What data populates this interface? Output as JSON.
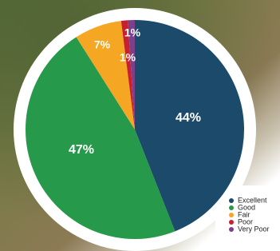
{
  "chart_data": {
    "type": "pie",
    "categories": [
      "Excellent",
      "Good",
      "Fair",
      "Poor",
      "Very Poor"
    ],
    "values": [
      44,
      47,
      7,
      1,
      1
    ],
    "value_labels": [
      "44%",
      "47%",
      "7%",
      "1%",
      "1%"
    ],
    "colors": [
      "#1b4a6b",
      "#27994a",
      "#f5a623",
      "#c8202f",
      "#7b3f8c"
    ]
  }
}
